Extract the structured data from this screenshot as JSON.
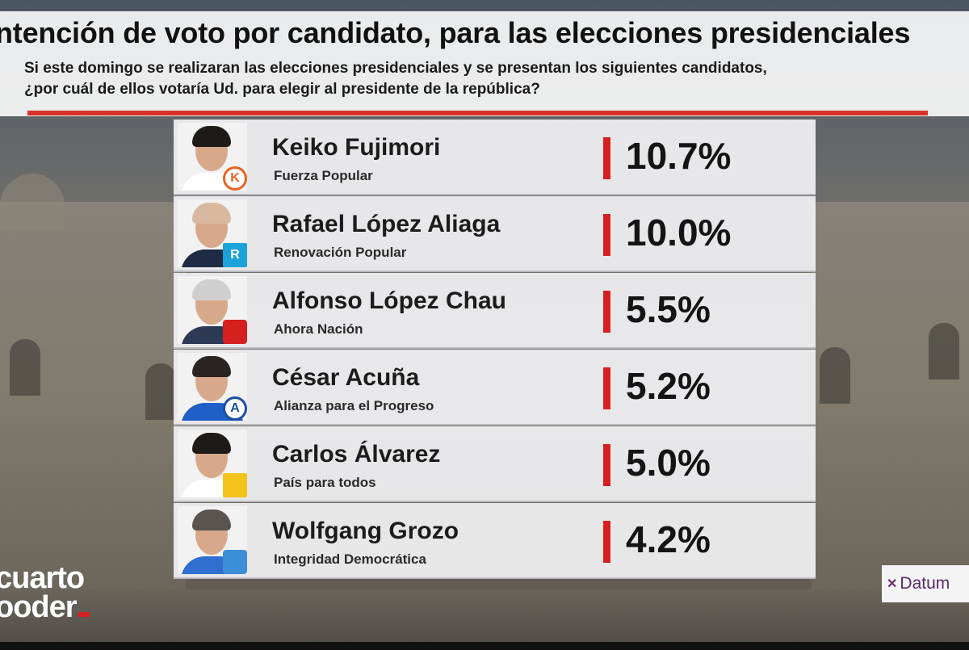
{
  "header": {
    "title": "ntención de voto por candidato, para las elecciones presidenciales",
    "subtitle_line1": "Si este domingo se realizaran las elecciones presidenciales y se presentan los siguientes candidatos,",
    "subtitle_line2": "¿por cuál de ellos votaría Ud. para elegir al presidente de la república?"
  },
  "branding": {
    "channel_line1": "cuarto",
    "channel_line2": "ooder",
    "pollster": "Datum"
  },
  "colors": {
    "accent_red": "#d6201f",
    "row_bg": "#ececee",
    "text_dark": "#141414"
  },
  "chart_data": {
    "type": "bar",
    "title": "ntención de voto por candidato, para las elecciones presidenciales",
    "categories": [
      "Keiko Fujimori",
      "Rafael López Aliaga",
      "Alfonso López Chau",
      "César Acuña",
      "Carlos Álvarez",
      "Wolfgang Grozo"
    ],
    "parties": [
      "Fuerza Popular",
      "Renovación Popular",
      "Ahora Nación",
      "Alianza para el Progreso",
      "País para todos",
      "Integridad Democrática"
    ],
    "values": [
      10.7,
      10.0,
      5.5,
      5.2,
      5.0,
      4.2
    ],
    "value_labels": [
      "10.7%",
      "10.0%",
      "5.5%",
      "5.2%",
      "5.0%",
      "4.2%"
    ],
    "party_logos": [
      "K",
      "R",
      "",
      "A",
      "",
      ""
    ],
    "unit": "%"
  }
}
